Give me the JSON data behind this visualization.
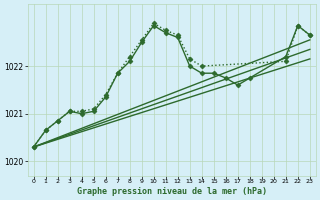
{
  "title": "Graphe pression niveau de la mer (hPa)",
  "background_color": "#d6eff7",
  "plot_bg_color": "#d6eff7",
  "line_color": "#2d6a2d",
  "grid_color": "#b8d8b8",
  "marker": "D",
  "marker_size": 2.5,
  "line_width": 1.0,
  "xlim": [
    -0.5,
    23.5
  ],
  "ylim": [
    1019.7,
    1023.3
  ],
  "xticks": [
    0,
    1,
    2,
    3,
    4,
    5,
    6,
    7,
    8,
    9,
    10,
    11,
    12,
    13,
    14,
    15,
    16,
    17,
    18,
    19,
    20,
    21,
    22,
    23
  ],
  "yticks": [
    1020,
    1021,
    1022
  ],
  "series": [
    {
      "x": [
        0,
        1,
        2,
        3,
        4,
        5,
        6,
        7,
        8,
        9,
        10,
        11,
        12,
        13,
        14,
        21,
        22,
        23
      ],
      "y": [
        1020.3,
        1020.65,
        1020.85,
        1021.05,
        1021.05,
        1021.1,
        1021.4,
        1021.85,
        1022.2,
        1022.55,
        1022.9,
        1022.75,
        1022.65,
        1022.15,
        1022.0,
        1022.1,
        1022.85,
        1022.65
      ],
      "linestyle": "dotted",
      "marker": "D",
      "markersize": 2.5
    },
    {
      "x": [
        0,
        1,
        2,
        3,
        4,
        5,
        6,
        7,
        8,
        9,
        10,
        11,
        12,
        13,
        14,
        15,
        16,
        17,
        18,
        21,
        22,
        23
      ],
      "y": [
        1020.3,
        1020.65,
        1020.85,
        1021.05,
        1021.0,
        1021.05,
        1021.35,
        1021.85,
        1022.1,
        1022.5,
        1022.85,
        1022.7,
        1022.6,
        1022.0,
        1021.85,
        1021.85,
        1021.75,
        1021.6,
        1021.75,
        1022.2,
        1022.85,
        1022.65
      ],
      "linestyle": "solid",
      "marker": "D",
      "markersize": 2.5
    },
    {
      "x": [
        0,
        23
      ],
      "y": [
        1020.3,
        1022.55
      ],
      "linestyle": "solid",
      "marker": null,
      "markersize": 0
    },
    {
      "x": [
        0,
        23
      ],
      "y": [
        1020.3,
        1022.35
      ],
      "linestyle": "solid",
      "marker": null,
      "markersize": 0
    },
    {
      "x": [
        0,
        23
      ],
      "y": [
        1020.3,
        1022.15
      ],
      "linestyle": "solid",
      "marker": null,
      "markersize": 0
    }
  ]
}
